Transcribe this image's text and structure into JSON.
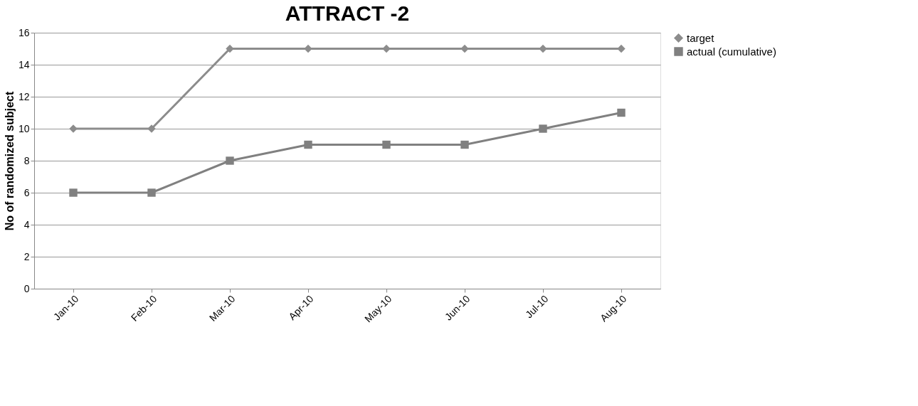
{
  "chart_data": {
    "type": "line",
    "title": "ATTRACT -2",
    "ylabel": "No of randomized subject",
    "categories": [
      "Jan-10",
      "Feb-10",
      "Mar-10",
      "Apr-10",
      "May-10",
      "Jun-10",
      "Jul-10",
      "Aug-10"
    ],
    "series": [
      {
        "name": "target",
        "color": "#8c8c8c",
        "marker": "diamond",
        "values": [
          10,
          10,
          15,
          15,
          15,
          15,
          15,
          15
        ]
      },
      {
        "name": "actual (cumulative)",
        "color": "#808080",
        "marker": "square",
        "values": [
          6,
          6,
          8,
          9,
          9,
          9,
          10,
          11
        ]
      }
    ],
    "ylim": [
      0,
      16
    ],
    "yticks": [
      0,
      2,
      4,
      6,
      8,
      10,
      12,
      14,
      16
    ],
    "grid": "y",
    "legend": "right",
    "line_style": "solid"
  }
}
